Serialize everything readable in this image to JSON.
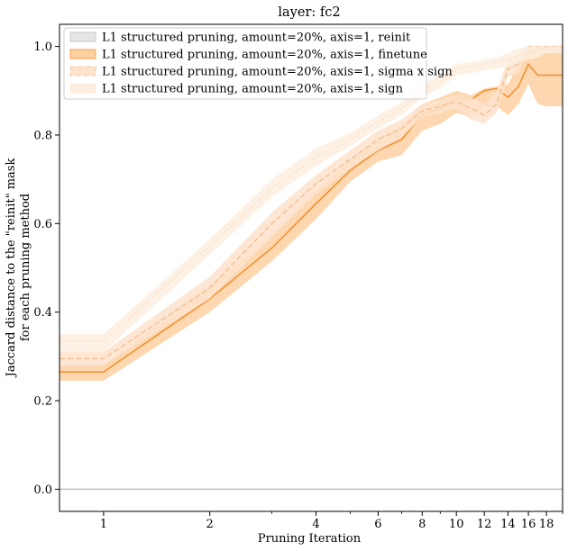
{
  "chart_data": {
    "type": "line",
    "title": "layer: fc2",
    "xlabel": "Pruning Iteration",
    "ylabel_lines": [
      "Jaccard distance to the \"reinit\" mask",
      "for each pruning method"
    ],
    "x_scale": "log",
    "xlim": [
      0.75,
      20
    ],
    "ylim": [
      -0.05,
      1.05
    ],
    "x_ticks": [
      1,
      2,
      4,
      6,
      8,
      10,
      12,
      14,
      16,
      18
    ],
    "x_tick_labels": [
      "1",
      "2",
      "4",
      "6",
      "8",
      "10",
      "12",
      "14",
      "16",
      "18"
    ],
    "y_ticks": [
      0.0,
      0.2,
      0.4,
      0.6,
      0.8,
      1.0
    ],
    "y_tick_labels": [
      "0.0",
      "0.2",
      "0.4",
      "0.6",
      "0.8",
      "1.0"
    ],
    "legend_position": "top-left",
    "x": [
      0.75,
      1,
      2,
      3,
      4,
      5,
      6,
      7,
      8,
      9,
      10,
      11,
      12,
      13,
      14,
      15,
      16,
      17,
      18,
      20
    ],
    "series": [
      {
        "name": "L1 structured pruning, amount=20%, axis=1, reinit",
        "color": "#bdbdbd",
        "fill": "#e6e6e6",
        "style": "solid",
        "y": [
          0,
          0,
          0,
          0,
          0,
          0,
          0,
          0,
          0,
          0,
          0,
          0,
          0,
          0,
          0,
          0,
          0,
          0,
          0,
          0
        ],
        "lower": [
          0,
          0,
          0,
          0,
          0,
          0,
          0,
          0,
          0,
          0,
          0,
          0,
          0,
          0,
          0,
          0,
          0,
          0,
          0,
          0
        ],
        "upper": [
          0,
          0,
          0,
          0,
          0,
          0,
          0,
          0,
          0,
          0,
          0,
          0,
          0,
          0,
          0,
          0,
          0,
          0,
          0,
          0
        ]
      },
      {
        "name": "L1 structured pruning, amount=20%, axis=1, finetune",
        "color": "#f28e2b",
        "fill": "#fdd0a2",
        "style": "solid",
        "y": [
          0.265,
          0.265,
          0.43,
          0.545,
          0.645,
          0.72,
          0.765,
          0.79,
          0.845,
          0.86,
          0.885,
          0.88,
          0.9,
          0.905,
          0.885,
          0.91,
          0.96,
          0.935,
          0.935,
          0.935
        ],
        "lower": [
          0.245,
          0.245,
          0.4,
          0.515,
          0.61,
          0.695,
          0.74,
          0.755,
          0.81,
          0.825,
          0.85,
          0.84,
          0.865,
          0.865,
          0.845,
          0.87,
          0.915,
          0.87,
          0.865,
          0.865
        ],
        "upper": [
          0.28,
          0.28,
          0.46,
          0.575,
          0.675,
          0.745,
          0.79,
          0.82,
          0.87,
          0.885,
          0.9,
          0.89,
          0.905,
          0.91,
          0.915,
          0.96,
          1.0,
          1.0,
          1.0,
          1.0
        ]
      },
      {
        "name": "L1 structured pruning, amount=20%, axis=1, sigma x sign",
        "color": "#f5c092",
        "fill": "#fde3cc",
        "style": "dashed",
        "y": [
          0.295,
          0.295,
          0.455,
          0.6,
          0.69,
          0.745,
          0.79,
          0.815,
          0.855,
          0.865,
          0.875,
          0.86,
          0.845,
          0.87,
          0.95,
          0.96,
          1.0,
          1.0,
          1.0,
          1.0
        ],
        "lower": [
          0.28,
          0.28,
          0.43,
          0.57,
          0.665,
          0.725,
          0.765,
          0.795,
          0.84,
          0.85,
          0.86,
          0.835,
          0.825,
          0.85,
          0.93,
          0.94,
          1.0,
          1.0,
          1.0,
          1.0
        ],
        "upper": [
          0.31,
          0.31,
          0.48,
          0.625,
          0.71,
          0.765,
          0.81,
          0.835,
          0.87,
          0.88,
          0.89,
          0.885,
          0.87,
          0.9,
          0.97,
          0.98,
          1.0,
          1.0,
          1.0,
          1.0
        ]
      },
      {
        "name": "L1 structured pruning, amount=20%, axis=1, sign",
        "color": "#fad9bc",
        "fill": "#fdeee0",
        "style": "dotted",
        "y": [
          0.335,
          0.335,
          0.55,
          0.68,
          0.75,
          0.79,
          0.83,
          0.86,
          0.9,
          0.92,
          0.95,
          0.955,
          0.96,
          0.965,
          0.97,
          0.98,
          0.985,
          0.99,
          1.0,
          1.0
        ],
        "lower": [
          0.31,
          0.31,
          0.53,
          0.66,
          0.73,
          0.775,
          0.815,
          0.845,
          0.885,
          0.905,
          0.935,
          0.94,
          0.945,
          0.95,
          0.955,
          0.965,
          0.97,
          0.975,
          0.985,
          0.985
        ],
        "upper": [
          0.35,
          0.35,
          0.565,
          0.7,
          0.77,
          0.805,
          0.845,
          0.875,
          0.915,
          0.935,
          0.96,
          0.965,
          0.97,
          0.975,
          0.985,
          0.995,
          1.0,
          1.0,
          1.0,
          1.0
        ]
      }
    ]
  }
}
